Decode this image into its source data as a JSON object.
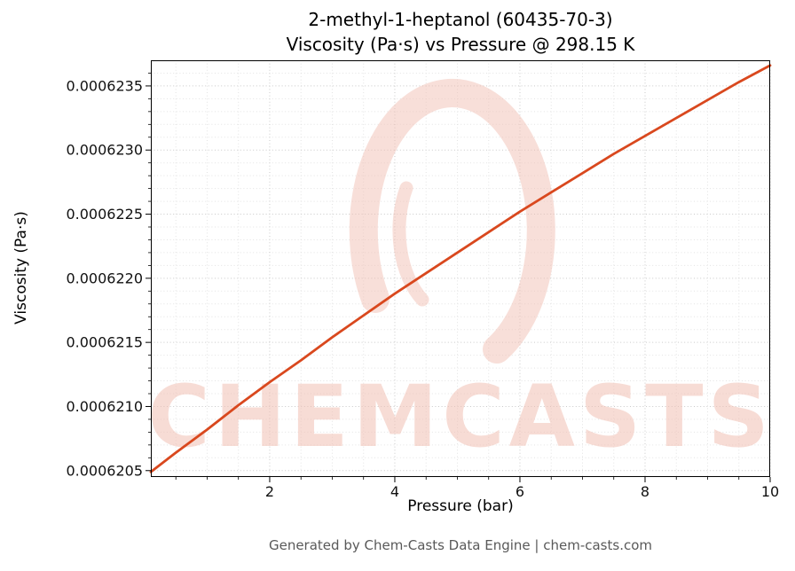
{
  "figure": {
    "title_line1": "2-methyl-1-heptanol (60435-70-3)",
    "title_line2": "Viscosity (Pa·s) vs Pressure @ 298.15 K",
    "footer": "Generated by Chem-Casts Data Engine | chem-casts.com",
    "watermark_text": "CHEMCASTS"
  },
  "chart_data": {
    "type": "line",
    "title": "2-methyl-1-heptanol (60435-70-3) — Viscosity (Pa·s) vs Pressure @ 298.15 K",
    "xlabel": "Pressure (bar)",
    "ylabel": "Viscosity (Pa·s)",
    "xlim": [
      0.1,
      10
    ],
    "ylim": [
      0.00062045,
      0.0006237
    ],
    "x_ticks": [
      2,
      4,
      6,
      8,
      10
    ],
    "x_tick_labels": [
      "2",
      "4",
      "6",
      "8",
      "10"
    ],
    "y_ticks": [
      0.0006205,
      0.000621,
      0.0006215,
      0.000622,
      0.0006225,
      0.000623,
      0.0006235
    ],
    "y_tick_labels": [
      "0.0006205",
      "0.0006210",
      "0.0006215",
      "0.0006220",
      "0.0006225",
      "0.0006230",
      "0.0006235"
    ],
    "x_minor_step": 0.5,
    "y_minor_step": 1e-07,
    "grid": true,
    "legend": "none",
    "series": [
      {
        "name": "viscosity",
        "x": [
          0.1,
          0.5,
          1,
          1.5,
          2,
          2.5,
          3,
          3.5,
          4,
          4.5,
          5,
          5.5,
          6,
          6.5,
          7,
          7.5,
          8,
          8.5,
          9,
          9.5,
          10
        ],
        "y": [
          0.00062049,
          0.00062064,
          0.00062082,
          0.00062101,
          0.00062119,
          0.00062136,
          0.00062154,
          0.00062171,
          0.00062188,
          0.00062204,
          0.0006222,
          0.00062236,
          0.00062252,
          0.00062267,
          0.00062282,
          0.00062297,
          0.00062311,
          0.00062325,
          0.00062339,
          0.00062353,
          0.00062366
        ]
      }
    ],
    "colors": {
      "line": "#d9481e",
      "watermark": "#f2c0b4",
      "grid_major": "#c9c9c9",
      "grid_minor": "#e3e3e3",
      "tick_text": "#111111",
      "spine": "#000000",
      "footer_text": "#595959"
    }
  }
}
